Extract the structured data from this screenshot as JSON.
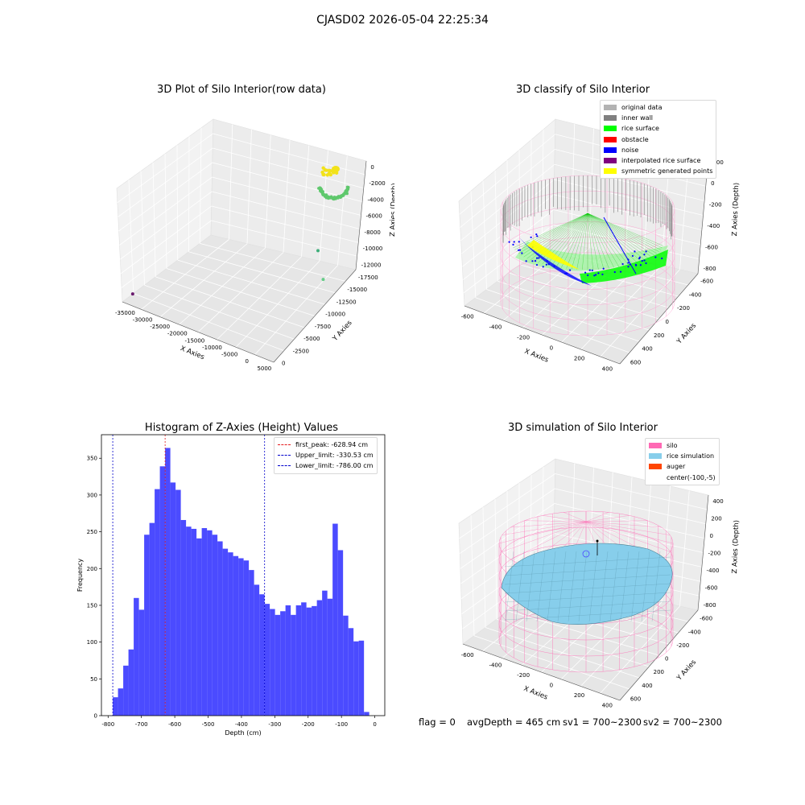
{
  "suptitle": "CJASD02 2026-05-04 22:25:34",
  "chart_data": [
    {
      "type": "scatter",
      "title": "3D Plot of Silo Interior(row data)",
      "xlabel": "X Axies",
      "ylabel": "Y Axies",
      "zlabel": "Z Axies (Depth)",
      "xticks": [
        "-35000",
        "-30000",
        "-25000",
        "-20000",
        "-15000",
        "-10000",
        "-5000",
        "0",
        "5000"
      ],
      "yticks": [
        "0",
        "-2500",
        "-5000",
        "-7500",
        "-10000",
        "-12500",
        "-15000",
        "-17500"
      ],
      "zticks": [
        "0",
        "-2000",
        "-4000",
        "-6000",
        "-8000",
        "-10000",
        "-12000"
      ],
      "xlim": [
        -37000,
        6000
      ],
      "ylim": [
        -18500,
        1000
      ],
      "zlim": [
        -13000,
        600
      ],
      "outliers": [
        {
          "x": -36000,
          "y": -17000,
          "z": -12500,
          "color": "#6a1b6e"
        },
        {
          "x": -4000,
          "y": -1000,
          "z": -8500,
          "color": "#3fae7a"
        },
        {
          "x": 2000,
          "y": -4500,
          "z": -9500,
          "color": "#66cc88"
        }
      ],
      "cluster_color": "#5fc86d",
      "cluster_top_color": "#f2e21a",
      "grid": true
    },
    {
      "type": "scatter",
      "title": "3D classify of Silo Interior",
      "xlabel": "X Axies",
      "ylabel": "Y Axies",
      "zlabel": "Z Axies (Depth)",
      "xticks": [
        "-600",
        "-400",
        "-200",
        "0",
        "200",
        "400"
      ],
      "yticks": [
        "600",
        "400",
        "200",
        "0",
        "-200",
        "-400",
        "-600"
      ],
      "zticks": [
        "200",
        "0",
        "-200",
        "-400",
        "-600",
        "-800"
      ],
      "legend": [
        {
          "label": "original data",
          "color": "#b3b3b3"
        },
        {
          "label": "inner wall",
          "color": "#808080"
        },
        {
          "label": "rice surface",
          "color": "#00ff00"
        },
        {
          "label": "obstacle",
          "color": "#ff0000"
        },
        {
          "label": "noise",
          "color": "#0000ff"
        },
        {
          "label": "interpolated rice surface",
          "color": "#800080"
        },
        {
          "label": "symmetric generated points",
          "color": "#ffff00"
        }
      ],
      "grid": true
    },
    {
      "type": "bar",
      "title": "Histogram of Z-Axies (Height) Values",
      "xlabel": "Depth (cm)",
      "ylabel": "Frequency",
      "bin_width": 15.7,
      "bin_start": -786,
      "values": [
        25,
        37,
        68,
        90,
        160,
        144,
        246,
        262,
        308,
        339,
        364,
        317,
        307,
        266,
        257,
        254,
        241,
        255,
        252,
        246,
        237,
        227,
        222,
        217,
        214,
        211,
        198,
        178,
        165,
        152,
        145,
        137,
        142,
        150,
        137,
        150,
        154,
        147,
        149,
        157,
        170,
        159,
        261,
        225,
        136,
        119,
        101,
        102,
        5
      ],
      "xlim": [
        -820,
        30
      ],
      "ylim": [
        0,
        382
      ],
      "xticks": [
        -800,
        -700,
        -600,
        -500,
        -400,
        -300,
        -200,
        -100,
        0
      ],
      "yticks": [
        0,
        50,
        100,
        150,
        200,
        250,
        300,
        350
      ],
      "bar_color": "#4b4bff",
      "lines": [
        {
          "label": "first_peak: -628.94 cm",
          "x": -628.94,
          "color": "#e31a1c"
        },
        {
          "label": "Upper_limit: -330.53 cm",
          "x": -330.53,
          "color": "#0000cc"
        },
        {
          "label": "Lower_limit: -786.00 cm",
          "x": -786.0,
          "color": "#0000cc"
        }
      ],
      "grid": false
    },
    {
      "type": "area",
      "title": "3D simulation of Silo Interior",
      "xlabel": "X Axies",
      "ylabel": "Y Axies",
      "zlabel": "Z Axies (Depth)",
      "xticks": [
        "-600",
        "-400",
        "-200",
        "0",
        "200",
        "400"
      ],
      "yticks": [
        "600",
        "400",
        "200",
        "0",
        "-200",
        "-400",
        "-600"
      ],
      "zticks": [
        "400",
        "200",
        "0",
        "-200",
        "-400",
        "-600",
        "-800"
      ],
      "legend": [
        {
          "label": "silo",
          "color": "#ff69b4"
        },
        {
          "label": "rice simulation",
          "color": "#87ceeb"
        },
        {
          "label": "auger",
          "color": "#ff4500"
        },
        {
          "label": "center(-100,-5)",
          "color": ""
        }
      ],
      "grid": true
    }
  ],
  "footer": {
    "flag": "flag = 0",
    "avg": "avgDepth = 465 cm",
    "sv1": "sv1 = 700~2300",
    "sv2": "sv2 = 700~2300"
  }
}
